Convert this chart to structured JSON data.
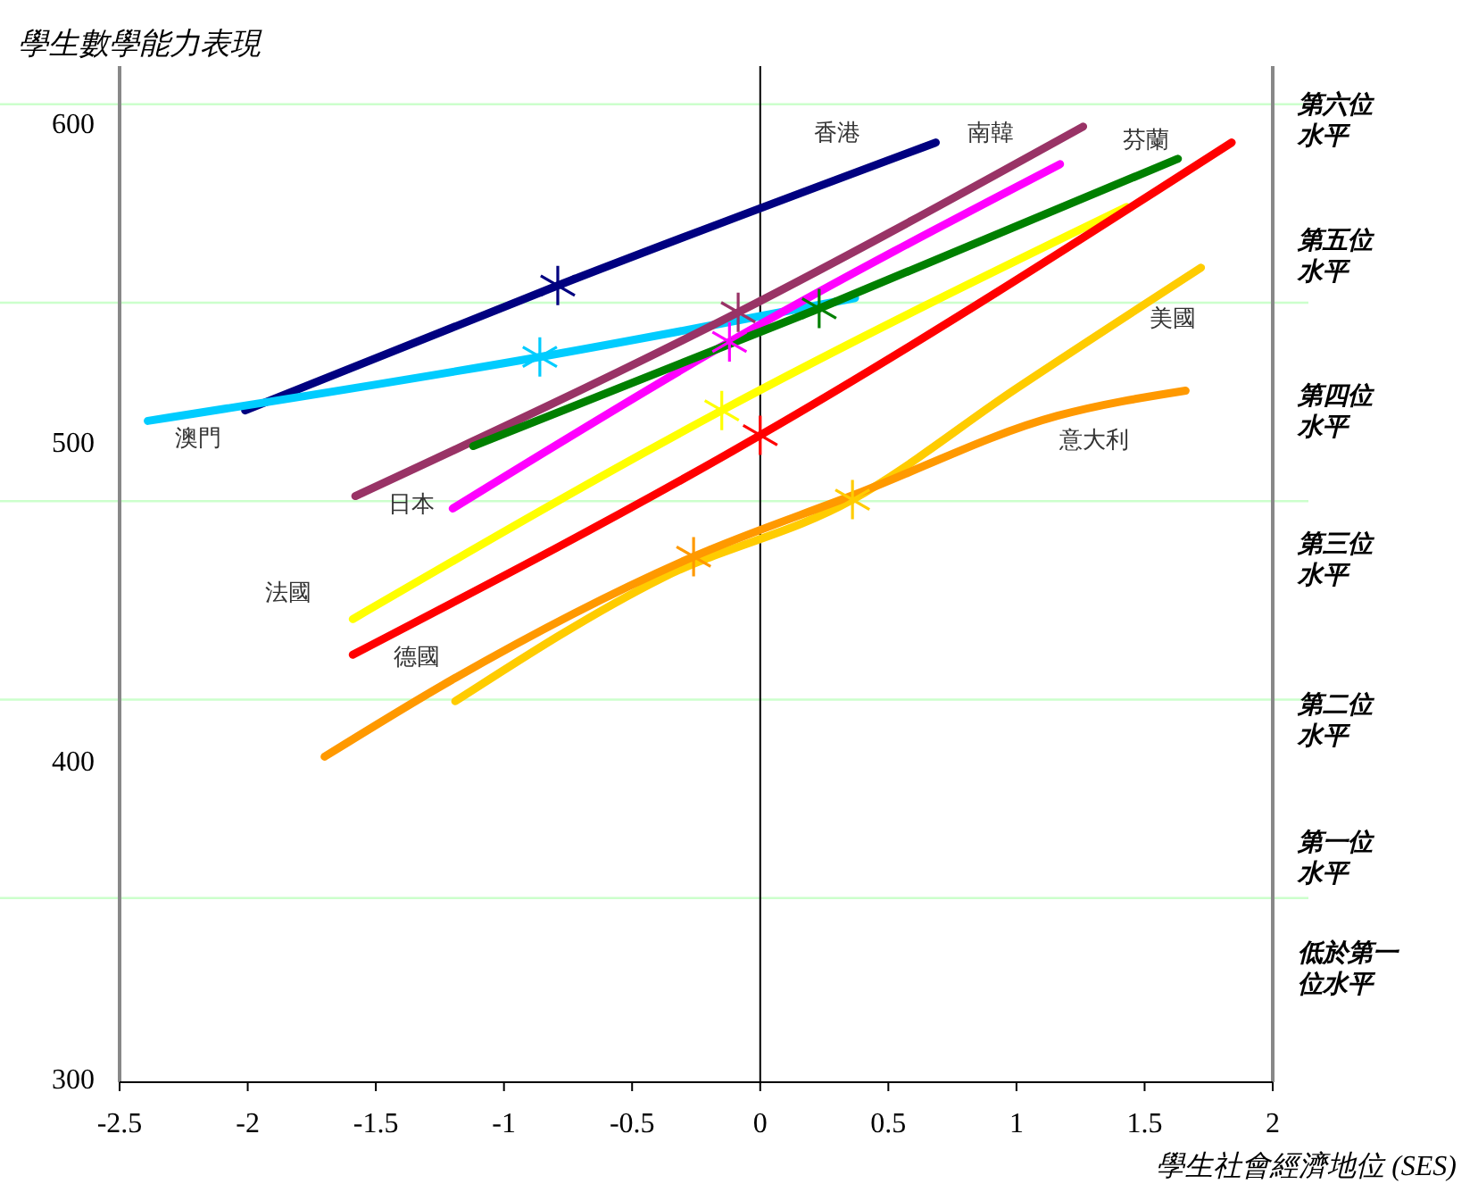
{
  "chart_data": {
    "type": "line",
    "ylabel": "學生數學能力表現",
    "xlabel": "學生社會經濟地位 (SES)",
    "xlim": [
      -2.5,
      2
    ],
    "ylim": [
      300,
      619
    ],
    "xticks": [
      -2.5,
      -2,
      -1.5,
      -1,
      -0.5,
      0,
      0.5,
      1,
      1.5,
      2
    ],
    "yticks": [
      300,
      400,
      500,
      600
    ],
    "grid": false,
    "legend": false,
    "line_style": "solid",
    "series": [
      {
        "name": "香港",
        "color": "#000080",
        "x": [
          -2.01,
          -0.79,
          0.685
        ],
        "values": [
          510.9,
          550.1,
          595.0
        ]
      },
      {
        "name": "澳門",
        "color": "#00ccff",
        "x": [
          -2.39,
          -0.86,
          0.37
        ],
        "values": [
          507.6,
          527.7,
          546.2
        ]
      },
      {
        "name": "南韓",
        "color": "#993366",
        "x": [
          -1.58,
          -0.086,
          1.26
        ],
        "values": [
          484.0,
          541.7,
          600.0
        ]
      },
      {
        "name": "日本",
        "color": "#ff00ff",
        "x": [
          -1.2,
          -0.12,
          1.17
        ],
        "values": [
          480.1,
          532.4,
          588.2
        ]
      },
      {
        "name": "芬蘭",
        "color": "#008000",
        "x": [
          -1.12,
          0.23,
          1.63
        ],
        "values": [
          499.7,
          542.9,
          589.9
        ]
      },
      {
        "name": "法國",
        "color": "#ffff00",
        "x": [
          -1.59,
          -0.15,
          1.43
        ],
        "values": [
          445.4,
          510.9,
          574.8
        ]
      },
      {
        "name": "德國",
        "color": "#ff0000",
        "x": [
          -1.59,
          0,
          1.84
        ],
        "values": [
          434.2,
          503.1,
          595.0
        ]
      },
      {
        "name": "美國",
        "color": "#ffcc00",
        "x": [
          -1.19,
          -0.38,
          0.36,
          1.0,
          1.72
        ],
        "values": [
          419.6,
          458.4,
          482.9,
          517.8,
          555.7
        ]
      },
      {
        "name": "意大利",
        "color": "#ff9900",
        "x": [
          -1.7,
          -1.21,
          -0.26,
          0.37,
          1.16,
          1.66
        ],
        "values": [
          402.2,
          426.0,
          465.0,
          484.5,
          509.2,
          517.1
        ]
      },
      {
        "type": "scatter",
        "marker": "cross",
        "color": "#000080",
        "x": [
          -0.79
        ],
        "values": [
          550.1
        ]
      },
      {
        "type": "scatter",
        "marker": "cross",
        "color": "#00ccff",
        "x": [
          -0.86
        ],
        "values": [
          527.7
        ]
      },
      {
        "type": "scatter",
        "marker": "cross",
        "color": "#993366",
        "x": [
          -0.086
        ],
        "values": [
          541.7
        ]
      },
      {
        "type": "scatter",
        "marker": "cross",
        "color": "#ff00ff",
        "x": [
          -0.12
        ],
        "values": [
          532.4
        ]
      },
      {
        "type": "scatter",
        "marker": "cross",
        "color": "#008000",
        "x": [
          0.23
        ],
        "values": [
          542.9
        ]
      },
      {
        "type": "scatter",
        "marker": "cross",
        "color": "#ffff00",
        "x": [
          -0.15
        ],
        "values": [
          510.9
        ]
      },
      {
        "type": "scatter",
        "marker": "cross",
        "color": "#ff0000",
        "x": [
          0
        ],
        "values": [
          503.1
        ]
      },
      {
        "type": "scatter",
        "marker": "cross",
        "color": "#ffcc00",
        "x": [
          0.36
        ],
        "values": [
          482.9
        ]
      },
      {
        "type": "scatter",
        "marker": "cross",
        "color": "#ff9900",
        "x": [
          -0.26
        ],
        "values": [
          465.0
        ]
      }
    ],
    "ref_lines": [
      {
        "axis": "y",
        "value": 607.0,
        "color": "#ccffcc"
      },
      {
        "axis": "y",
        "value": 544.7,
        "color": "#ccffcc"
      },
      {
        "axis": "y",
        "value": 482.4,
        "color": "#ccffcc"
      },
      {
        "axis": "y",
        "value": 420.1,
        "color": "#ccffcc"
      },
      {
        "axis": "y",
        "value": 357.8,
        "color": "#ccffcc"
      },
      {
        "axis": "x",
        "value": 0,
        "color": "#000000"
      }
    ],
    "annotations": [
      "第六位水平",
      "第五位水平",
      "第四位水平",
      "第三位水平",
      "第二位水平",
      "第一位水平",
      "低於第一位水平"
    ]
  }
}
